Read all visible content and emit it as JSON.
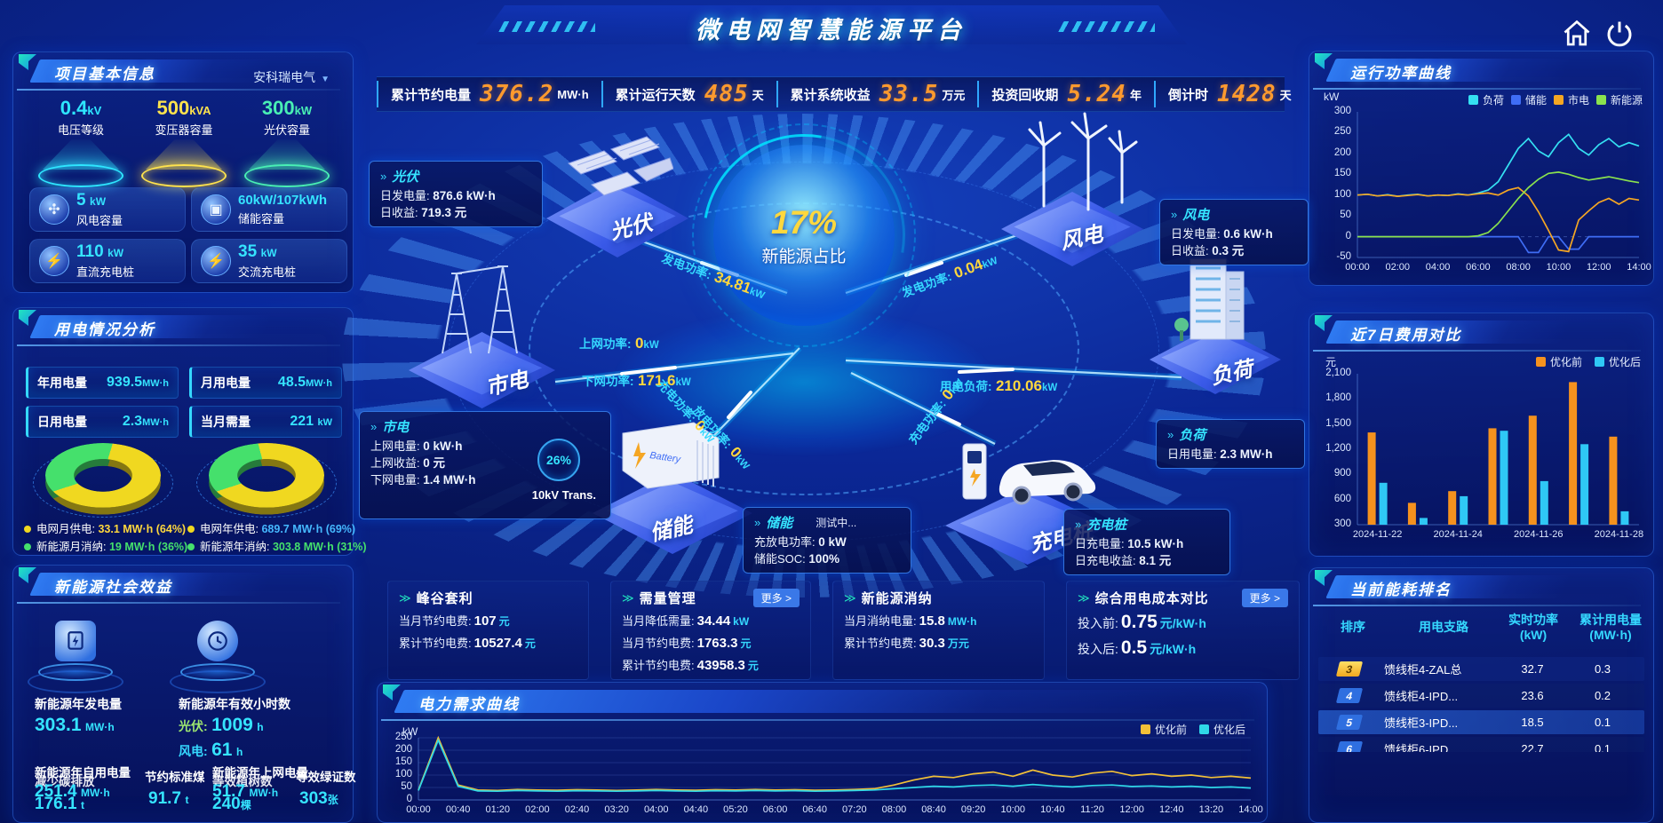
{
  "title": "微电网智慧能源平台",
  "topbar": {
    "stats": [
      {
        "label": "累计节约电量",
        "value": "376.2",
        "unit": "MW·h"
      },
      {
        "label": "累计运行天数",
        "value": "485",
        "unit": "天"
      },
      {
        "label": "累计系统收益",
        "value": "33.5",
        "unit": "万元"
      },
      {
        "label": "投资回收期",
        "value": "5.24",
        "unit": "年"
      },
      {
        "label": "倒计时",
        "value": "1428",
        "unit": "天"
      }
    ]
  },
  "project": {
    "header": "项目基本信息",
    "company": "安科瑞电气",
    "spots": [
      {
        "value": "0.4",
        "unit": "kV",
        "label": "电压等级",
        "color": "#2ee6ff"
      },
      {
        "value": "500",
        "unit": "kVA",
        "label": "变压器容量",
        "color": "#ffe34d"
      },
      {
        "value": "300",
        "unit": "kW",
        "label": "光伏容量",
        "color": "#49f0b4"
      }
    ],
    "caps": [
      {
        "value": "5",
        "unit": "kW",
        "label": "风电容量",
        "icon": "wind-turbine-icon"
      },
      {
        "value": "60kW/107kWh",
        "unit": "",
        "label": "储能容量",
        "icon": "battery-icon"
      },
      {
        "value": "110",
        "unit": "kW",
        "label": "直流充电桩",
        "icon": "dc-charger-icon"
      },
      {
        "value": "35",
        "unit": "kW",
        "label": "交流充电桩",
        "icon": "ac-charger-icon"
      }
    ]
  },
  "usage": {
    "header": "用电情况分析",
    "stats": [
      {
        "label": "年用电量",
        "value": "939.5",
        "unit": "MW·h"
      },
      {
        "label": "月用电量",
        "value": "48.5",
        "unit": "MW·h"
      },
      {
        "label": "日用电量",
        "value": "2.3",
        "unit": "MW·h"
      },
      {
        "label": "当月需量",
        "value": "221",
        "unit": "kW"
      }
    ],
    "donuts": [
      {
        "slices": [
          {
            "label": "电网月供电:",
            "value": "33.1 MW·h (64%)",
            "pct": 64,
            "color": "#f0d820",
            "valueColor": "#ffd83d"
          },
          {
            "label": "新能源月消纳:",
            "value": "19 MW·h (36%)",
            "pct": 36,
            "color": "#45e06c",
            "valueColor": "#45e06c"
          }
        ]
      },
      {
        "slices": [
          {
            "label": "电网年供电:",
            "value": "689.7 MW·h (69%)",
            "pct": 69,
            "color": "#f0d820",
            "valueColor": "#45b8ff"
          },
          {
            "label": "新能源年消纳:",
            "value": "303.8 MW·h (31%)",
            "pct": 31,
            "color": "#45e06c",
            "valueColor": "#45e06c"
          }
        ]
      }
    ]
  },
  "benefit": {
    "header": "新能源社会效益",
    "col1": {
      "label": "新能源年发电量",
      "value": "303.1",
      "unit": "MW·h"
    },
    "col2": {
      "label": "新能源年有效小时数",
      "rows": [
        {
          "k": "光伏:",
          "v": "1009",
          "u": "h",
          "kc": "#9fe870"
        },
        {
          "k": "风电:",
          "v": "61",
          "u": "h",
          "kc": "#35d8ff"
        }
      ]
    },
    "overlap1": {
      "a": "新能源年自用电量",
      "av": "251.4",
      "au": "MW·h",
      "b": "减少碳排放",
      "bv": "176.1",
      "bu": "t",
      "c": "节约标准煤",
      "cv": "91.7",
      "cu": "t"
    },
    "overlap2": {
      "a": "新能源年上网电量",
      "av": "51.7",
      "au": "MW·h",
      "b": "等效植树数",
      "bv": "240",
      "bu": "棵",
      "c": "等效绿证数",
      "cv": "303",
      "cu": "张"
    }
  },
  "center": {
    "pct": "17%",
    "pctLabel": "新能源占比",
    "nodes": {
      "pv": "光伏",
      "grid": "市电",
      "storage": "储能",
      "wind": "风电",
      "load": "负荷",
      "charger": "充电桩"
    },
    "pvBox": {
      "title": "光伏",
      "rows": [
        [
          "日发电量:",
          "876.6 kW·h"
        ],
        [
          "日收益:",
          "719.3 元"
        ]
      ]
    },
    "gridBox": {
      "title": "市电",
      "rows": [
        [
          "上网电量:",
          "0 kW·h"
        ],
        [
          "上网收益:",
          "0 元"
        ],
        [
          "下网电量:",
          "1.4 MW·h"
        ]
      ],
      "trans": "26%",
      "transLabel": "10kV Trans."
    },
    "storageBox": {
      "title": "储能",
      "badge": "测试中...",
      "rows": [
        [
          "充放电功率:",
          "0 kW"
        ],
        [
          "储能SOC:",
          "100%"
        ]
      ]
    },
    "windBox": {
      "title": "风电",
      "rows": [
        [
          "日发电量:",
          "0.6 kW·h"
        ],
        [
          "日收益:",
          "0.3 元"
        ]
      ]
    },
    "loadBox": {
      "title": "负荷",
      "rows": [
        [
          "日用电量:",
          "2.3 MW·h"
        ]
      ]
    },
    "chargerBox": {
      "title": "充电桩",
      "rows": [
        [
          "日充电量:",
          "10.5 kW·h"
        ],
        [
          "日充电收益:",
          "8.1 元"
        ]
      ]
    },
    "flows": {
      "pvPower": {
        "k": "发电功率:",
        "v": "34.81",
        "u": "kW"
      },
      "up": {
        "k": "上网功率:",
        "v": "0",
        "u": "kW"
      },
      "down": {
        "k": "下网功率:",
        "v": "171.6",
        "u": "kW"
      },
      "windPower": {
        "k": "发电功率:",
        "v": "0.04",
        "u": "kW"
      },
      "load": {
        "k": "用电负荷:",
        "v": "210.06",
        "u": "kW"
      },
      "chg": {
        "k": "充电功率:",
        "v": "0",
        "u": "kW"
      },
      "dis": {
        "k": "放电功率:",
        "v": "0",
        "u": "kW"
      },
      "evchg": {
        "k": "充电功率:",
        "v": "0",
        "u": "kW"
      }
    }
  },
  "moreLabel": "更多 >",
  "cards": [
    {
      "title": "峰谷套利",
      "rows": [
        [
          "当月节约电费:",
          "107",
          "元"
        ],
        [
          "累计节约电费:",
          "10527.4",
          "元"
        ]
      ]
    },
    {
      "title": "需量管理",
      "rows": [
        [
          "当月降低需量:",
          "34.44",
          "kW"
        ],
        [
          "当月节约电费:",
          "1763.3",
          "元"
        ],
        [
          "累计节约电费:",
          "43958.3",
          "元"
        ]
      ]
    },
    {
      "title": "新能源消纳",
      "rows": [
        [
          "当月消纳电量:",
          "15.8",
          "MW·h"
        ],
        [
          "累计节约电费:",
          "30.3",
          "万元"
        ]
      ]
    },
    {
      "title": "综合用电成本对比",
      "rows": [
        [
          "投入前:",
          "0.75",
          "元/kW·h"
        ],
        [
          "投入后:",
          "0.5",
          "元/kW·h"
        ]
      ]
    }
  ],
  "demand": {
    "header": "电力需求曲线"
  },
  "rpower": {
    "header": "运行功率曲线"
  },
  "rcost": {
    "header": "近7日费用对比"
  },
  "ranking": {
    "header": "当前能耗排名",
    "cols": [
      "排序",
      "用电支路",
      "实时功率",
      "累计用电量"
    ],
    "colUnits": [
      "",
      "",
      "(kW)",
      "(MW·h)"
    ],
    "rows": [
      {
        "rank": "3",
        "branch": "馈线柜4-ZAL总",
        "power": "32.7",
        "energy": "0.3"
      },
      {
        "rank": "4",
        "branch": "馈线柜4-IPD...",
        "power": "23.6",
        "energy": "0.2"
      },
      {
        "rank": "5",
        "branch": "馈线柜3-IPD...",
        "power": "18.5",
        "energy": "0.1"
      },
      {
        "rank": "6",
        "branch": "馈线柜6-IPD",
        "power": "22.7",
        "energy": "0.1"
      }
    ]
  },
  "chart_data": [
    {
      "id": "runPower",
      "type": "line",
      "title": "运行功率曲线",
      "ylabel": "kW",
      "ylim": [
        -50,
        300
      ],
      "yticks": [
        300,
        250,
        200,
        150,
        100,
        50,
        0,
        -50
      ],
      "xticks": [
        "00:00",
        "02:00",
        "04:00",
        "06:00",
        "08:00",
        "10:00",
        "12:00",
        "14:00"
      ],
      "legend_position": "top-right",
      "grid": false,
      "series": [
        {
          "name": "负荷",
          "color": "#35e0f2",
          "values": [
            100,
            102,
            98,
            101,
            97,
            100,
            102,
            98,
            100,
            99,
            103,
            100,
            105,
            112,
            132,
            172,
            212,
            236,
            206,
            192,
            226,
            246,
            212,
            196,
            221,
            236,
            216,
            226,
            218
          ]
        },
        {
          "name": "储能",
          "color": "#3f6df5",
          "values": [
            0,
            0,
            0,
            0,
            0,
            0,
            0,
            0,
            0,
            0,
            0,
            0,
            0,
            0,
            0,
            0,
            0,
            -38,
            -38,
            0,
            0,
            -30,
            -30,
            0,
            0,
            0,
            0,
            0,
            0
          ]
        },
        {
          "name": "市电",
          "color": "#f5a623",
          "values": [
            100,
            102,
            98,
            100,
            97,
            99,
            101,
            98,
            100,
            99,
            102,
            100,
            103,
            105,
            100,
            112,
            118,
            98,
            60,
            15,
            -32,
            -36,
            40,
            62,
            82,
            92,
            78,
            92,
            88
          ]
        },
        {
          "name": "新能源",
          "color": "#8ae24e",
          "values": [
            0,
            0,
            0,
            0,
            0,
            0,
            0,
            0,
            0,
            0,
            0,
            0,
            2,
            10,
            32,
            62,
            92,
            118,
            138,
            152,
            155,
            150,
            142,
            136,
            140,
            144,
            139,
            134,
            130
          ]
        }
      ]
    },
    {
      "id": "cost7",
      "type": "bar",
      "title": "近7日费用对比",
      "ylabel": "元",
      "ylim": [
        300,
        2100
      ],
      "yticks": [
        "2,100",
        "1,800",
        "1,500",
        "1,200",
        "900",
        "600",
        "300"
      ],
      "categories": [
        "2024-11-22",
        "2024-11-23",
        "2024-11-24",
        "2024-11-25",
        "2024-11-26",
        "2024-11-27",
        "2024-11-28"
      ],
      "xticks": [
        "2024-11-22",
        "2024-11-24",
        "2024-11-26",
        "2024-11-28"
      ],
      "legend_position": "top-right",
      "grid": false,
      "series": [
        {
          "name": "优化前",
          "color": "#f5921e",
          "values": [
            1400,
            560,
            700,
            1450,
            1600,
            2000,
            1350
          ]
        },
        {
          "name": "优化后",
          "color": "#2fc8f5",
          "values": [
            800,
            380,
            640,
            1420,
            820,
            1260,
            460
          ]
        }
      ]
    },
    {
      "id": "demandCurve",
      "type": "line",
      "title": "电力需求曲线",
      "ylabel": "kW",
      "ylim": [
        0,
        250
      ],
      "yticks": [
        250,
        200,
        150,
        100,
        50,
        0
      ],
      "xticks": [
        "00:00",
        "00:40",
        "01:20",
        "02:00",
        "02:40",
        "03:20",
        "04:00",
        "04:40",
        "05:20",
        "06:00",
        "06:40",
        "07:20",
        "08:00",
        "08:40",
        "09:20",
        "10:00",
        "10:40",
        "11:20",
        "12:00",
        "12:40",
        "13:20",
        "14:00"
      ],
      "legend_position": "top-right",
      "grid": true,
      "series": [
        {
          "name": "优化前",
          "color": "#f2c038",
          "values": [
            40,
            250,
            60,
            40,
            38,
            42,
            40,
            39,
            41,
            40,
            38,
            40,
            42,
            40,
            39,
            41,
            40,
            42,
            40,
            41,
            39,
            40,
            42,
            45,
            60,
            80,
            95,
            90,
            105,
            112,
            95,
            120,
            100,
            92,
            108,
            115,
            98,
            105,
            95,
            100,
            90,
            95,
            88
          ]
        },
        {
          "name": "优化后",
          "color": "#2fd8e8",
          "values": [
            38,
            240,
            55,
            36,
            35,
            38,
            36,
            35,
            37,
            36,
            35,
            36,
            38,
            36,
            35,
            37,
            36,
            38,
            36,
            37,
            35,
            36,
            38,
            40,
            45,
            50,
            55,
            52,
            58,
            60,
            55,
            62,
            56,
            52,
            58,
            60,
            54,
            56,
            52,
            55,
            50,
            52,
            48
          ]
        }
      ]
    },
    {
      "id": "donutMonth",
      "type": "pie",
      "labels": [
        "电网月供电",
        "新能源月消纳"
      ],
      "values": [
        64,
        36
      ],
      "colors": [
        "#f0d820",
        "#45e06c"
      ]
    },
    {
      "id": "donutYear",
      "type": "pie",
      "labels": [
        "电网年供电",
        "新能源年消纳"
      ],
      "values": [
        69,
        31
      ],
      "colors": [
        "#f0d820",
        "#45e06c"
      ]
    }
  ]
}
